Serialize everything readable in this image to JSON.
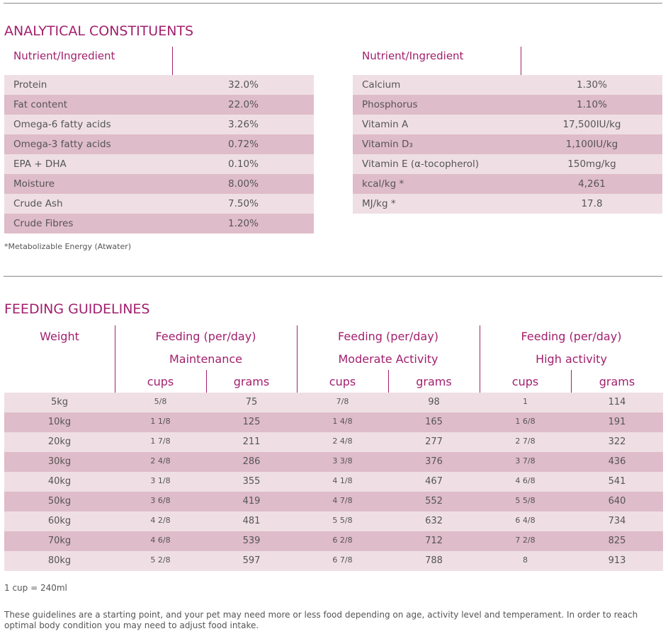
{
  "analytical": {
    "title": "ANALYTICAL CONSTITUENTS",
    "left": {
      "header": "Nutrient/Ingredient",
      "rows": [
        {
          "name": "Protein",
          "value": "32.0%"
        },
        {
          "name": "Fat content",
          "value": "22.0%"
        },
        {
          "name": "Omega-6 fatty acids",
          "value": "3.26%"
        },
        {
          "name": "Omega-3 fatty acids",
          "value": "0.72%"
        },
        {
          "name": "EPA + DHA",
          "value": "0.10%"
        },
        {
          "name": "Moisture",
          "value": "8.00%"
        },
        {
          "name": "Crude Ash",
          "value": "7.50%"
        },
        {
          "name": "Crude Fibres",
          "value": "1.20%"
        }
      ]
    },
    "right": {
      "header": "Nutrient/Ingredient",
      "rows": [
        {
          "name": "Calcium",
          "value": "1.30%"
        },
        {
          "name": "Phosphorus",
          "value": "1.10%"
        },
        {
          "name": "Vitamin A",
          "value": "17,500IU/kg"
        },
        {
          "name": "Vitamin D₃",
          "value": "1,100IU/kg"
        },
        {
          "name": "Vitamin E (α-tocopherol)",
          "value": "150mg/kg"
        },
        {
          "name": "kcal/kg *",
          "value": "4,261"
        },
        {
          "name": "MJ/kg *",
          "value": "17.8"
        }
      ]
    },
    "footnote": "*Metabolizable Energy (Atwater)"
  },
  "feeding": {
    "title": "FEEDING GUIDELINES",
    "weight_header": "Weight",
    "groups": [
      {
        "line1": "Feeding (per/day)",
        "line2": "Maintenance",
        "cups": "cups",
        "grams": "grams"
      },
      {
        "line1": "Feeding (per/day)",
        "line2": "Moderate Activity",
        "cups": "cups",
        "grams": "grams"
      },
      {
        "line1": "Feeding (per/day)",
        "line2": "High activity",
        "cups": "cups",
        "grams": "grams"
      }
    ],
    "rows": [
      [
        "5kg",
        "5/8",
        "75",
        "7/8",
        "98",
        "1",
        "114"
      ],
      [
        "10kg",
        "1 1/8",
        "125",
        "1 4/8",
        "165",
        "1 6/8",
        "191"
      ],
      [
        "20kg",
        "1 7/8",
        "211",
        "2 4/8",
        "277",
        "2 7/8",
        "322"
      ],
      [
        "30kg",
        "2 4/8",
        "286",
        "3 3/8",
        "376",
        "3 7/8",
        "436"
      ],
      [
        "40kg",
        "3 1/8",
        "355",
        "4 1/8",
        "467",
        "4 6/8",
        "541"
      ],
      [
        "50kg",
        "3 6/8",
        "419",
        "4 7/8",
        "552",
        "5 5/8",
        "640"
      ],
      [
        "60kg",
        "4 2/8",
        "481",
        "5 5/8",
        "632",
        "6 4/8",
        "734"
      ],
      [
        "70kg",
        "4 6/8",
        "539",
        "6 2/8",
        "712",
        "7 2/8",
        "825"
      ],
      [
        "80kg",
        "5 2/8",
        "597",
        "6 7/8",
        "788",
        "8",
        "913"
      ]
    ],
    "cup_note": "1 cup = 240ml",
    "guideline_text": "These guidelines are a starting point, and your pet may need more or less food depending on age, activity level and temperament. In order to reach optimal body condition you may need to adjust food intake."
  }
}
